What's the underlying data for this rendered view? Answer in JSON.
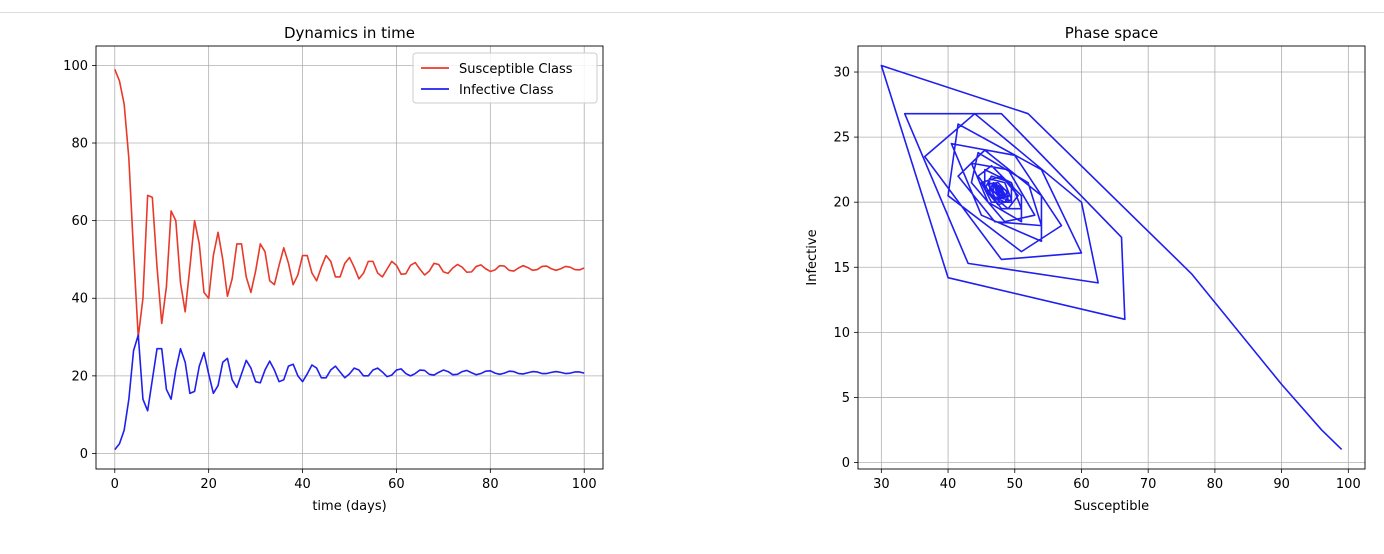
{
  "chart_data": [
    {
      "type": "line",
      "title": "Dynamics in time",
      "xlabel": "time (days)",
      "ylabel": "",
      "xlim": [
        -4,
        104
      ],
      "ylim": [
        -4,
        105
      ],
      "xticks": [
        0,
        20,
        40,
        60,
        80,
        100
      ],
      "yticks": [
        0,
        20,
        40,
        60,
        80,
        100
      ],
      "grid": true,
      "legend_position": "top-right",
      "x": [
        0,
        1,
        2,
        3,
        4,
        5,
        6,
        7,
        8,
        9,
        10,
        11,
        12,
        13,
        14,
        15,
        16,
        17,
        18,
        19,
        20,
        21,
        22,
        23,
        24,
        25,
        26,
        27,
        28,
        29,
        30,
        31,
        32,
        33,
        34,
        35,
        36,
        37,
        38,
        39,
        40,
        41,
        42,
        43,
        44,
        45,
        46,
        47,
        48,
        49,
        50,
        51,
        52,
        53,
        54,
        55,
        56,
        57,
        58,
        59,
        60,
        61,
        62,
        63,
        64,
        65,
        66,
        67,
        68,
        69,
        70,
        71,
        72,
        73,
        74,
        75,
        76,
        77,
        78,
        79,
        80,
        81,
        82,
        83,
        84,
        85,
        86,
        87,
        88,
        89,
        90,
        91,
        92,
        93,
        94,
        95,
        96,
        97,
        98,
        99,
        100
      ],
      "series": [
        {
          "name": "Susceptible Class",
          "color": "#e8392a",
          "values": [
            99.0,
            96.0,
            90.0,
            76.0,
            52.0,
            30.0,
            40.0,
            66.5,
            66.0,
            48.0,
            33.5,
            43.0,
            62.5,
            60.0,
            44.0,
            36.5,
            48.0,
            60.0,
            54.0,
            41.5,
            40.0,
            51.0,
            57.0,
            50.0,
            40.5,
            45.0,
            54.0,
            54.0,
            45.5,
            41.5,
            47.0,
            54.0,
            52.0,
            44.5,
            43.5,
            48.5,
            53.0,
            49.0,
            43.5,
            46.0,
            51.0,
            51.0,
            46.5,
            44.5,
            48.0,
            51.0,
            49.5,
            45.5,
            45.5,
            49.0,
            50.5,
            48.0,
            45.0,
            46.5,
            49.5,
            49.5,
            46.5,
            45.5,
            47.5,
            49.5,
            48.5,
            46.2,
            46.3,
            48.5,
            49.2,
            47.5,
            46.0,
            47.0,
            49.0,
            48.7,
            46.8,
            46.4,
            47.8,
            48.7,
            48.0,
            46.7,
            46.8,
            48.2,
            48.6,
            47.6,
            46.9,
            47.3,
            48.4,
            48.3,
            47.2,
            47.0,
            47.8,
            48.4,
            47.9,
            47.2,
            47.4,
            48.2,
            48.3,
            47.6,
            47.2,
            47.6,
            48.2,
            48.0,
            47.4,
            47.3,
            47.8
          ]
        },
        {
          "name": "Infective Class",
          "color": "#1f1ff0",
          "values": [
            1.0,
            2.5,
            6.0,
            14.0,
            26.5,
            30.5,
            14.0,
            11.0,
            19.0,
            27.0,
            27.0,
            16.5,
            14.0,
            21.5,
            27.0,
            23.5,
            15.5,
            16.0,
            22.5,
            26.0,
            20.5,
            15.5,
            17.5,
            23.5,
            24.5,
            19.0,
            17.0,
            20.5,
            24.0,
            22.0,
            18.5,
            18.2,
            21.5,
            23.8,
            21.5,
            18.5,
            19.0,
            22.5,
            23.0,
            20.0,
            18.5,
            20.5,
            22.8,
            22.0,
            19.5,
            19.5,
            21.5,
            22.5,
            21.0,
            19.5,
            20.5,
            22.0,
            21.5,
            20.0,
            20.0,
            21.5,
            22.0,
            21.0,
            19.8,
            20.2,
            21.5,
            21.8,
            20.6,
            20.0,
            20.6,
            21.5,
            21.4,
            20.4,
            20.2,
            20.9,
            21.5,
            21.1,
            20.3,
            20.4,
            21.1,
            21.4,
            20.8,
            20.3,
            20.6,
            21.2,
            21.3,
            20.7,
            20.4,
            20.7,
            21.2,
            21.1,
            20.6,
            20.5,
            20.8,
            21.1,
            21.0,
            20.6,
            20.6,
            20.9,
            21.1,
            20.9,
            20.6,
            20.7,
            21.0,
            21.0,
            20.7
          ]
        }
      ]
    },
    {
      "type": "line",
      "title": "Phase space",
      "xlabel": "Susceptible",
      "ylabel": "Infective",
      "xlim": [
        26.5,
        102.5
      ],
      "ylim": [
        -0.5,
        32.0
      ],
      "xticks": [
        30,
        40,
        50,
        60,
        70,
        80,
        90,
        100
      ],
      "yticks": [
        0,
        5,
        10,
        15,
        20,
        25,
        30
      ],
      "grid": true,
      "series": [
        {
          "color": "#1f1ff0",
          "points": [
            [
              99.0,
              1.0
            ],
            [
              96.0,
              2.5
            ],
            [
              90.0,
              6.0
            ],
            [
              76.5,
              14.5
            ],
            [
              52.0,
              26.8
            ],
            [
              30.0,
              30.5
            ],
            [
              40.0,
              14.2
            ],
            [
              66.5,
              11.0
            ],
            [
              66.0,
              17.3
            ],
            [
              48.0,
              26.8
            ],
            [
              33.5,
              26.8
            ],
            [
              43.0,
              15.3
            ],
            [
              62.5,
              13.8
            ],
            [
              60.0,
              20.0
            ],
            [
              44.0,
              26.8
            ],
            [
              36.5,
              23.5
            ],
            [
              48.0,
              15.6
            ],
            [
              60.0,
              16.1
            ],
            [
              54.0,
              22.5
            ],
            [
              41.5,
              26.0
            ],
            [
              40.0,
              20.5
            ],
            [
              51.0,
              16.2
            ],
            [
              57.0,
              18.2
            ],
            [
              50.0,
              23.6
            ],
            [
              40.5,
              24.5
            ],
            [
              45.0,
              19.0
            ],
            [
              54.0,
              17.0
            ],
            [
              54.0,
              20.5
            ],
            [
              45.5,
              24.0
            ],
            [
              41.5,
              22.0
            ],
            [
              47.0,
              18.5
            ],
            [
              54.0,
              18.2
            ],
            [
              52.0,
              21.5
            ],
            [
              44.5,
              23.8
            ],
            [
              43.5,
              21.5
            ],
            [
              48.5,
              18.5
            ],
            [
              53.0,
              19.0
            ],
            [
              49.0,
              22.5
            ],
            [
              43.5,
              23.0
            ],
            [
              46.0,
              20.0
            ],
            [
              51.0,
              18.5
            ],
            [
              51.0,
              20.5
            ],
            [
              46.5,
              22.8
            ],
            [
              44.5,
              22.0
            ],
            [
              48.0,
              19.5
            ],
            [
              51.0,
              19.5
            ],
            [
              49.5,
              21.5
            ],
            [
              45.5,
              22.5
            ],
            [
              45.5,
              21.0
            ],
            [
              49.0,
              19.5
            ],
            [
              50.5,
              20.5
            ],
            [
              48.0,
              22.0
            ],
            [
              45.0,
              21.5
            ],
            [
              46.5,
              20.0
            ],
            [
              49.5,
              20.0
            ],
            [
              49.5,
              21.5
            ],
            [
              46.5,
              22.0
            ],
            [
              45.5,
              21.0
            ],
            [
              47.5,
              19.8
            ],
            [
              49.5,
              20.2
            ],
            [
              48.5,
              21.5
            ],
            [
              46.2,
              21.8
            ],
            [
              46.3,
              20.6
            ],
            [
              48.5,
              20.0
            ],
            [
              49.2,
              20.6
            ],
            [
              47.5,
              21.5
            ],
            [
              46.0,
              21.4
            ],
            [
              47.0,
              20.4
            ],
            [
              49.0,
              20.2
            ],
            [
              48.7,
              20.9
            ],
            [
              46.8,
              21.5
            ],
            [
              46.4,
              21.1
            ],
            [
              47.8,
              20.3
            ],
            [
              48.7,
              20.4
            ],
            [
              48.0,
              21.1
            ],
            [
              46.7,
              21.4
            ],
            [
              46.8,
              20.8
            ],
            [
              48.2,
              20.3
            ],
            [
              48.6,
              20.6
            ],
            [
              47.6,
              21.2
            ],
            [
              46.9,
              21.3
            ],
            [
              47.3,
              20.7
            ],
            [
              48.4,
              20.4
            ],
            [
              48.3,
              20.7
            ],
            [
              47.2,
              21.2
            ],
            [
              47.0,
              21.1
            ],
            [
              47.8,
              20.6
            ],
            [
              48.4,
              20.5
            ],
            [
              47.9,
              20.8
            ],
            [
              47.2,
              21.1
            ],
            [
              47.4,
              21.0
            ],
            [
              48.2,
              20.6
            ],
            [
              48.3,
              20.6
            ],
            [
              47.6,
              20.9
            ],
            [
              47.2,
              21.1
            ],
            [
              47.6,
              20.9
            ],
            [
              48.2,
              20.6
            ],
            [
              48.0,
              20.7
            ],
            [
              47.4,
              21.0
            ],
            [
              47.3,
              21.0
            ],
            [
              47.8,
              20.7
            ]
          ]
        }
      ]
    }
  ]
}
